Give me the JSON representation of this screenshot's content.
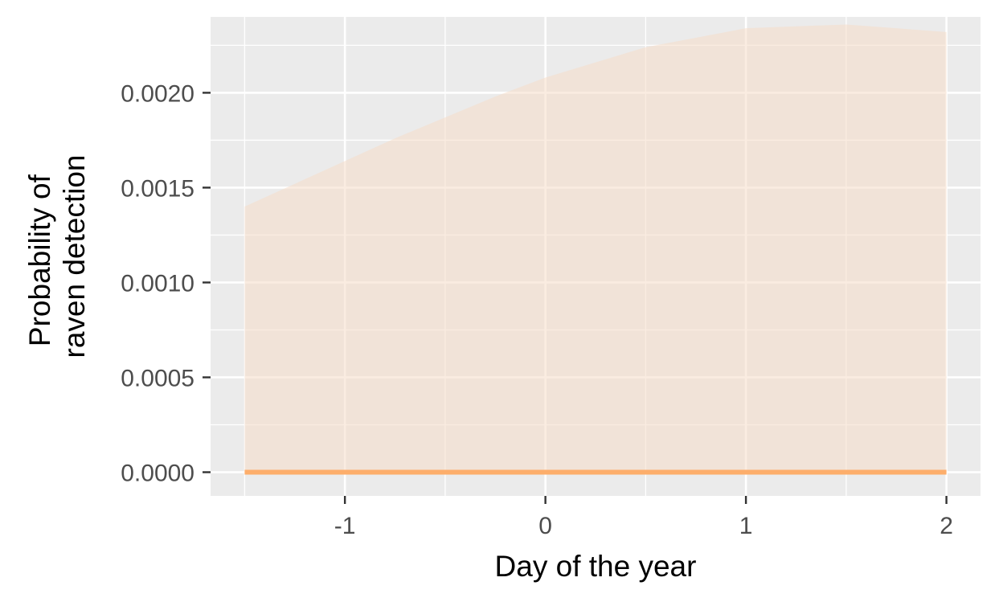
{
  "chart_data": {
    "type": "area",
    "title": "",
    "xlabel": "Day of the year",
    "ylabel": "Probability of raven detection",
    "ylabel_lines": [
      "Probability of",
      "raven detection"
    ],
    "xlim": [
      -1.67,
      2.17
    ],
    "ylim": [
      -0.000125,
      0.0024
    ],
    "x_ticks": [
      -1,
      0,
      1,
      2
    ],
    "x_tick_labels": [
      "-1",
      "0",
      "1",
      "2"
    ],
    "y_ticks": [
      0,
      0.0005,
      0.001,
      0.0015,
      0.002
    ],
    "y_tick_labels": [
      "0.0000",
      "0.0005",
      "0.0010",
      "0.0015",
      "0.0020"
    ],
    "grid": true,
    "legend": "none",
    "series": [
      {
        "x": [
          -1.5,
          -1.25,
          -1.0,
          -0.75,
          -0.5,
          -0.25,
          0.0,
          0.25,
          0.5,
          0.75,
          1.0,
          1.25,
          1.5,
          1.75,
          2.0
        ],
        "lower": [
          0,
          0,
          0,
          0,
          0,
          0,
          0,
          0,
          0,
          0,
          0,
          0,
          0,
          0,
          0
        ],
        "upper": [
          0.0014,
          0.00152,
          0.00164,
          0.00176,
          0.00187,
          0.00198,
          0.00208,
          0.00216,
          0.00224,
          0.00229,
          0.00234,
          0.00235,
          0.00236,
          0.00234,
          0.00232
        ],
        "mean": [
          0,
          0,
          0,
          0,
          0,
          0,
          0,
          0,
          0,
          0,
          0,
          0,
          0,
          0,
          0
        ]
      }
    ],
    "colors": {
      "panel_background": "#EBEBEB",
      "grid": "#FFFFFF",
      "ribbon": "#F5DCC8",
      "ribbon_opacity": 0.55,
      "line": "#FDAE6B",
      "tick_text": "#4D4D4D",
      "tick_mark": "#333333"
    }
  }
}
